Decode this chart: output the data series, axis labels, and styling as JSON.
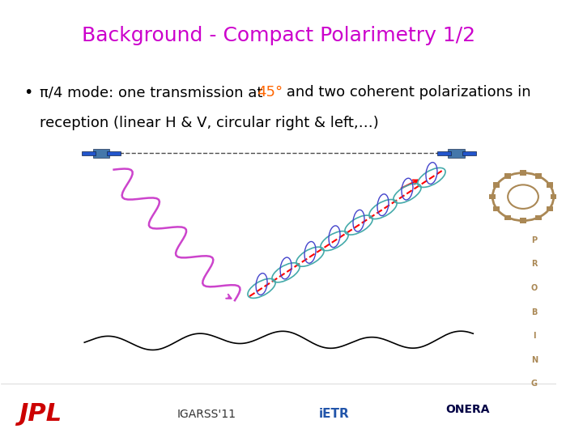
{
  "title": "Background - Compact Polarimetry 1/2",
  "title_color": "#CC00CC",
  "title_fontsize": 18,
  "bullet_text_1": "π/4 mode: one transmission at ",
  "bullet_highlight": "45°",
  "bullet_highlight_color": "#FF6600",
  "bullet_text_2": " and two coherent polarizations in",
  "bullet_text_3": "reception (linear H & V, circular right & left,…)",
  "bullet_fontsize": 13,
  "bullet_color": "#000000",
  "footer_text": "IGARSS'11",
  "background_color": "#FFFFFF"
}
